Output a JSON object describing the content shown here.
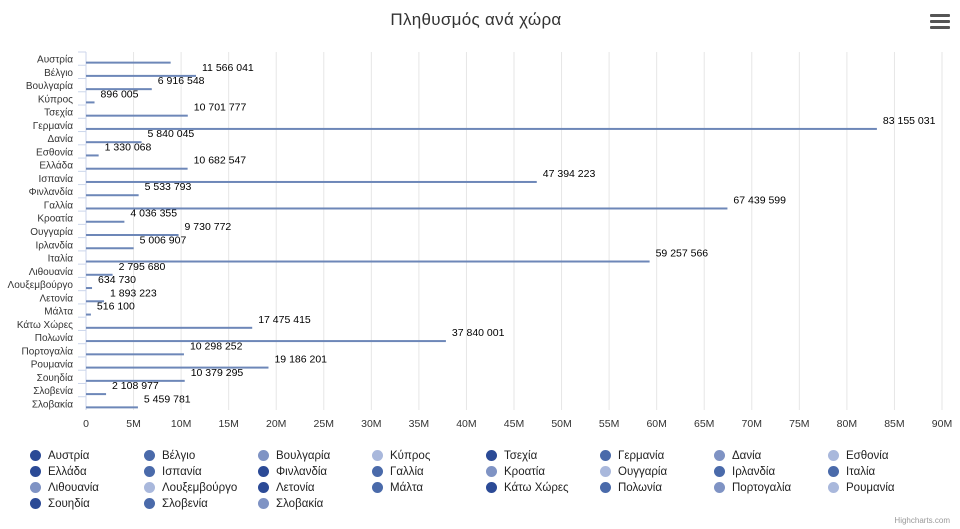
{
  "chart_data": {
    "type": "bar",
    "orientation": "horizontal",
    "title": "Πληθυσμός ανά χώρα",
    "xlim": [
      0,
      90000000
    ],
    "grid": true,
    "legend_position": "bottom",
    "x_ticks": [
      "0",
      "5M",
      "10M",
      "15M",
      "20M",
      "25M",
      "30M",
      "35M",
      "40M",
      "45M",
      "50M",
      "55M",
      "60M",
      "65M",
      "70M",
      "75M",
      "80M",
      "85M",
      "90M"
    ],
    "categories": [
      "Αυστρία",
      "Βέλγιο",
      "Βουλγαρία",
      "Κύπρος",
      "Τσεχία",
      "Γερμανία",
      "Δανία",
      "Εσθονία",
      "Ελλάδα",
      "Ισπανία",
      "Φινλανδία",
      "Γαλλία",
      "Κροατία",
      "Ουγγαρία",
      "Ιρλανδία",
      "Ιταλία",
      "Λιθουανία",
      "Λουξεμβούργο",
      "Λετονία",
      "Μάλτα",
      "Κάτω Χώρες",
      "Πολωνία",
      "Πορτογαλία",
      "Ρουμανία",
      "Σουηδία",
      "Σλοβενία",
      "Σλοβακία"
    ],
    "values": [
      8901064,
      11566041,
      6916548,
      896005,
      10701777,
      83155031,
      5840045,
      1330068,
      10682547,
      47394223,
      5533793,
      67439599,
      4036355,
      9730772,
      5006907,
      59257566,
      2795680,
      634730,
      1893223,
      516100,
      17475415,
      37840001,
      10298252,
      19186201,
      10379295,
      2108977,
      5459781
    ],
    "data_labels": [
      "",
      "11 566 041",
      "6 916 548",
      "896 005",
      "10 701 777",
      "83 155 031",
      "5 840 045",
      "1 330 068",
      "10 682 547",
      "47 394 223",
      "5 533 793",
      "67 439 599",
      "4 036 355",
      "9 730 772",
      "5 006 907",
      "59 257 566",
      "2 795 680",
      "634 730",
      "1 893 223",
      "516 100",
      "17 475 415",
      "37 840 001",
      "10 298 252",
      "19 186 201",
      "10 379 295",
      "2 108 977",
      "5 459 781"
    ],
    "series_colors": [
      "#2b4a96",
      "#4a6aaa",
      "#7f93c4",
      "#a9b8dc",
      "#2b4a96",
      "#4a6aaa",
      "#7f93c4",
      "#a9b8dc",
      "#2b4a96",
      "#4a6aaa",
      "#2b4a96",
      "#4a6aaa",
      "#7f93c4",
      "#a9b8dc",
      "#4a6aaa",
      "#4a6aaa",
      "#7f93c4",
      "#a9b8dc",
      "#2b4a96",
      "#4a6aaa",
      "#2b4a96",
      "#4a6aaa",
      "#7f93c4",
      "#a9b8dc",
      "#2b4a96",
      "#4a6aaa",
      "#7f93c4"
    ],
    "bar_color": "#6d87b8",
    "grid_color": "#e6e6e6"
  },
  "credits": "Highcharts.com",
  "menu_icon": "hamburger-menu-icon"
}
